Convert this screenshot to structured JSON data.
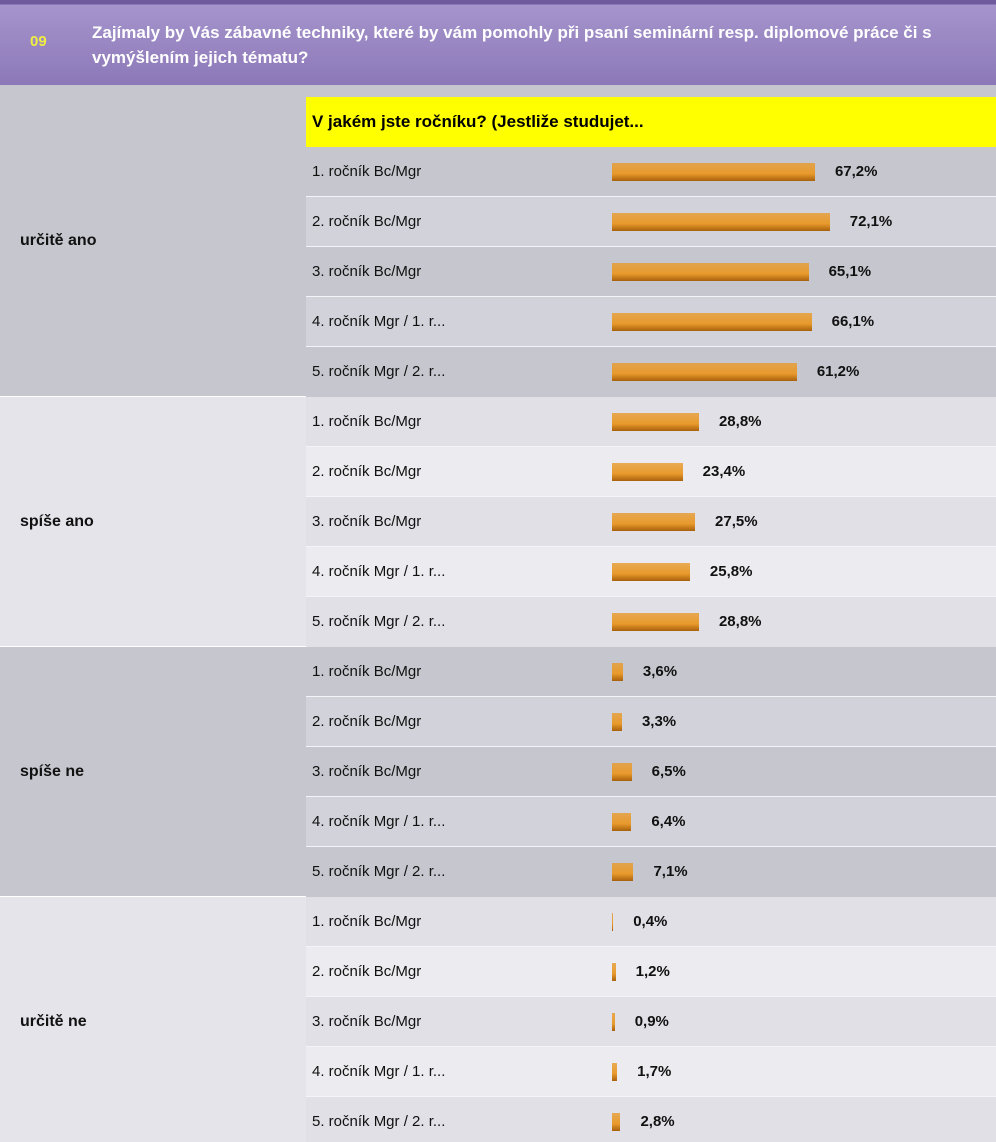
{
  "chart_data": {
    "type": "bar",
    "number": "09",
    "title": "Zajímaly by Vás zábavné techniky, které by vám pomohly při psaní seminární resp. diplomové práce či s vymýšlením jejich tématu?",
    "header": "V jakém jste ročníku? (Jestliže studujet...",
    "categories": [
      "1. ročník Bc/Mgr",
      "2. ročník Bc/Mgr",
      "3. ročník Bc/Mgr",
      "4. ročník Mgr / 1. r...",
      "5. ročník Mgr / 2. r..."
    ],
    "color": "#e89a2c",
    "groups": [
      {
        "name": "určitě ano",
        "values": [
          67.2,
          72.1,
          65.1,
          66.1,
          61.2
        ],
        "value_labels": [
          "67,2%",
          "72,1%",
          "65,1%",
          "66,1%",
          "61,2%"
        ]
      },
      {
        "name": "spíše ano",
        "values": [
          28.8,
          23.4,
          27.5,
          25.8,
          28.8
        ],
        "value_labels": [
          "28,8%",
          "23,4%",
          "27,5%",
          "25,8%",
          "28,8%"
        ]
      },
      {
        "name": "spíše ne",
        "values": [
          3.6,
          3.3,
          6.5,
          6.4,
          7.1
        ],
        "value_labels": [
          "3,6%",
          "3,3%",
          "6,5%",
          "6,4%",
          "7,1%"
        ]
      },
      {
        "name": "určitě ne",
        "values": [
          0.4,
          1.2,
          0.9,
          1.7,
          2.8
        ],
        "value_labels": [
          "0,4%",
          "1,2%",
          "0,9%",
          "1,7%",
          "2,8%"
        ]
      }
    ]
  }
}
